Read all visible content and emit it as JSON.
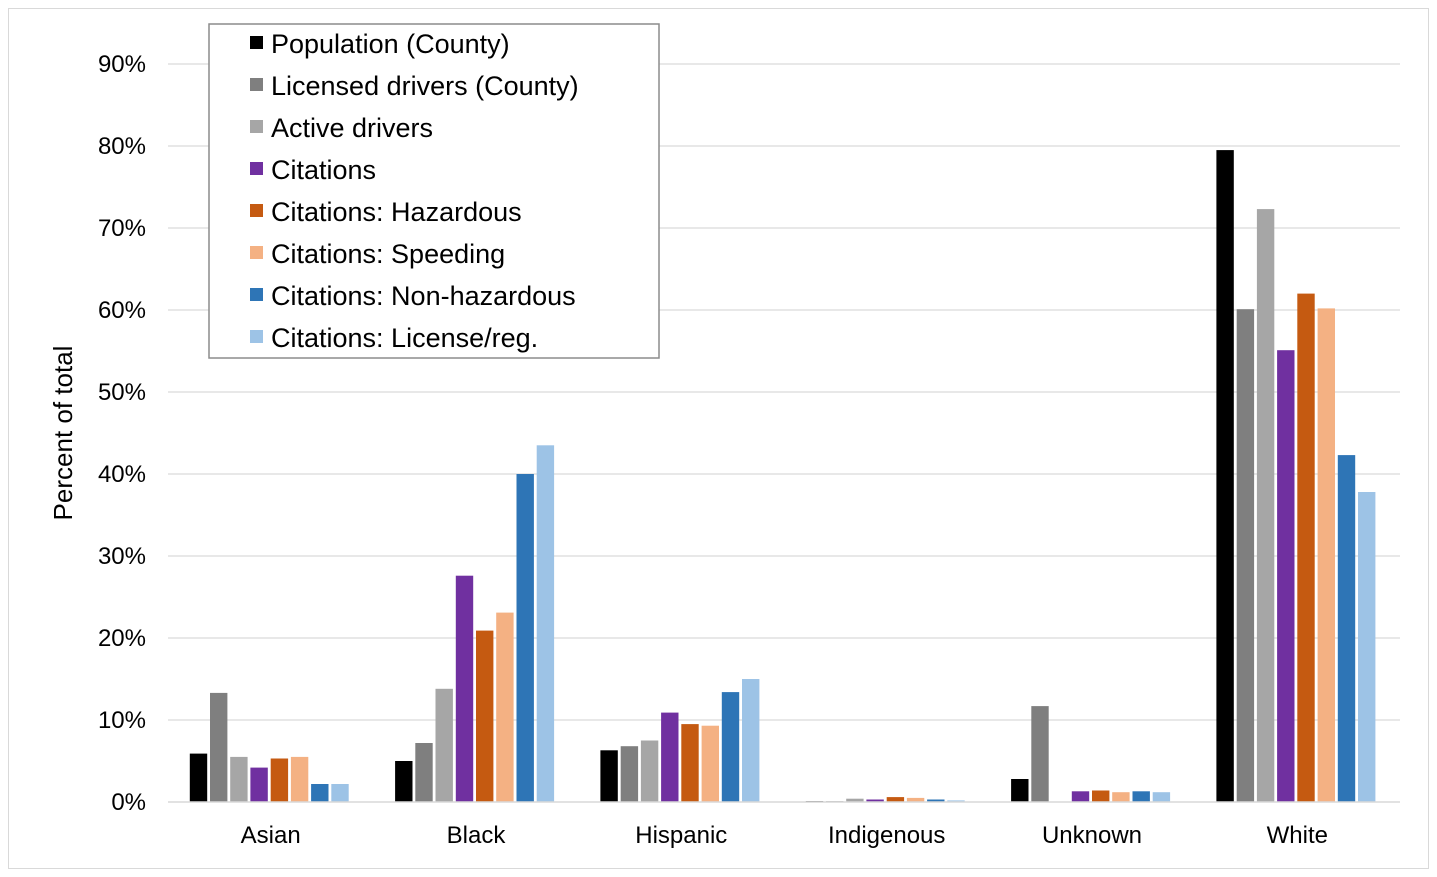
{
  "chart_data": {
    "type": "bar",
    "title": "",
    "xlabel": "",
    "ylabel": "Percent of total",
    "ylim": [
      0,
      90
    ],
    "yticks": [
      "0%",
      "10%",
      "20%",
      "30%",
      "40%",
      "50%",
      "60%",
      "70%",
      "80%",
      "90%"
    ],
    "grid": true,
    "legend_position": "top-left",
    "categories": [
      "Asian",
      "Black",
      "Hispanic",
      "Indigenous",
      "Unknown",
      "White"
    ],
    "series": [
      {
        "name": "Population (County)",
        "color": "#000000",
        "values": [
          5.9,
          5.0,
          6.3,
          0.1,
          2.8,
          79.5
        ]
      },
      {
        "name": "Licensed drivers (County)",
        "color": "#7f7f7f",
        "values": [
          13.3,
          7.2,
          6.8,
          0.1,
          11.7,
          60.1
        ]
      },
      {
        "name": "Active drivers",
        "color": "#a6a6a6",
        "values": [
          5.5,
          13.8,
          7.5,
          0.4,
          0.0,
          72.3
        ]
      },
      {
        "name": "Citations",
        "color": "#7030a0",
        "values": [
          4.2,
          27.6,
          10.9,
          0.3,
          1.3,
          55.1
        ]
      },
      {
        "name": "Citations: Hazardous",
        "color": "#c55a11",
        "values": [
          5.3,
          20.9,
          9.5,
          0.6,
          1.4,
          62.0
        ]
      },
      {
        "name": "Citations: Speeding",
        "color": "#f4b183",
        "values": [
          5.5,
          23.1,
          9.3,
          0.5,
          1.2,
          60.2
        ]
      },
      {
        "name": "Citations: Non-hazardous",
        "color": "#2e75b6",
        "values": [
          2.2,
          40.0,
          13.4,
          0.3,
          1.3,
          42.3
        ]
      },
      {
        "name": "Citations: License/reg.",
        "color": "#9dc3e6",
        "values": [
          2.2,
          43.5,
          15.0,
          0.2,
          1.2,
          37.8
        ]
      }
    ]
  }
}
